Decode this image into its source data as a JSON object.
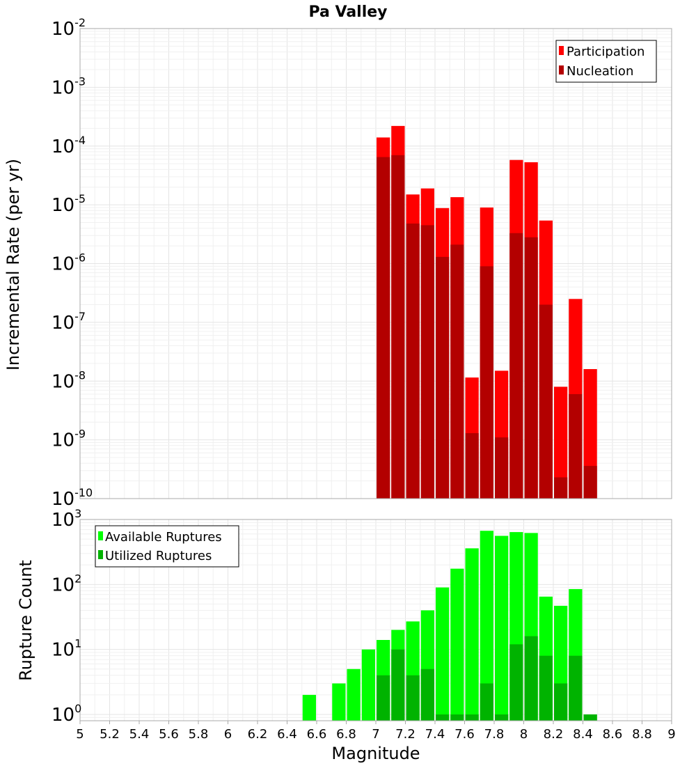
{
  "title": "Pa Valley",
  "x_axis": {
    "label": "Magnitude",
    "min": 5,
    "max": 9,
    "ticks": [
      "5",
      "5.2",
      "5.4",
      "5.6",
      "5.8",
      "6",
      "6.2",
      "6.4",
      "6.6",
      "6.8",
      "7",
      "7.2",
      "7.4",
      "7.6",
      "7.8",
      "8",
      "8.2",
      "8.4",
      "8.6",
      "8.8",
      "9"
    ]
  },
  "colors": {
    "participation": "#ff0000",
    "nucleation": "#b30000",
    "available": "#00ff00",
    "utilized": "#00b300"
  },
  "chart_data": [
    {
      "type": "bar",
      "name": "rates",
      "ylabel": "Incremental Rate (per yr)",
      "yscale": "log",
      "ylim": [
        1e-10,
        0.01
      ],
      "y_ticks": [
        {
          "base": "10",
          "exp": "-10"
        },
        {
          "base": "10",
          "exp": "-9"
        },
        {
          "base": "10",
          "exp": "-8"
        },
        {
          "base": "10",
          "exp": "-7"
        },
        {
          "base": "10",
          "exp": "-6"
        },
        {
          "base": "10",
          "exp": "-5"
        },
        {
          "base": "10",
          "exp": "-4"
        },
        {
          "base": "10",
          "exp": "-3"
        },
        {
          "base": "10",
          "exp": "-2"
        }
      ],
      "legend": {
        "placement": "top-right",
        "entries": [
          "Participation",
          "Nucleation"
        ]
      },
      "x": [
        7.05,
        7.15,
        7.25,
        7.35,
        7.45,
        7.55,
        7.65,
        7.75,
        7.85,
        7.95,
        8.05,
        8.15,
        8.25,
        8.35,
        8.45
      ],
      "series": [
        {
          "name": "Participation",
          "values": [
            0.00014,
            0.00022,
            1.5e-05,
            1.9e-05,
            8.8e-06,
            1.35e-05,
            1.15e-08,
            9e-06,
            1.5e-08,
            5.8e-05,
            5.3e-05,
            5.4e-06,
            8e-09,
            2.5e-07,
            1.6e-08
          ]
        },
        {
          "name": "Nucleation",
          "values": [
            6.5e-05,
            7e-05,
            4.8e-06,
            4.5e-06,
            1.3e-06,
            2.1e-06,
            1.3e-09,
            9e-07,
            1.1e-09,
            3.3e-06,
            2.8e-06,
            2e-07,
            2.3e-10,
            6e-09,
            3.6e-10
          ]
        }
      ]
    },
    {
      "type": "bar",
      "name": "counts",
      "ylabel": "Rupture Count",
      "yscale": "log",
      "ylim": [
        0.8,
        1000
      ],
      "y_ticks": [
        {
          "base": "10",
          "exp": "0"
        },
        {
          "base": "10",
          "exp": "1"
        },
        {
          "base": "10",
          "exp": "2"
        },
        {
          "base": "10",
          "exp": "3"
        }
      ],
      "legend": {
        "placement": "top-left",
        "entries": [
          "Available Ruptures",
          "Utilized Ruptures"
        ]
      },
      "x": [
        6.55,
        6.75,
        6.85,
        6.95,
        7.05,
        7.15,
        7.25,
        7.35,
        7.45,
        7.55,
        7.65,
        7.75,
        7.85,
        7.95,
        8.05,
        8.15,
        8.25,
        8.35,
        8.45
      ],
      "series": [
        {
          "name": "Available Ruptures",
          "values": [
            2,
            3,
            5,
            10,
            14,
            20,
            27,
            40,
            90,
            175,
            360,
            670,
            560,
            640,
            620,
            65,
            47,
            85,
            1
          ]
        },
        {
          "name": "Utilized Ruptures",
          "values": [
            0,
            0,
            0,
            0,
            4,
            10,
            4,
            5,
            1,
            1,
            1,
            3,
            1,
            12,
            16,
            8,
            3,
            8,
            1
          ]
        }
      ]
    }
  ]
}
